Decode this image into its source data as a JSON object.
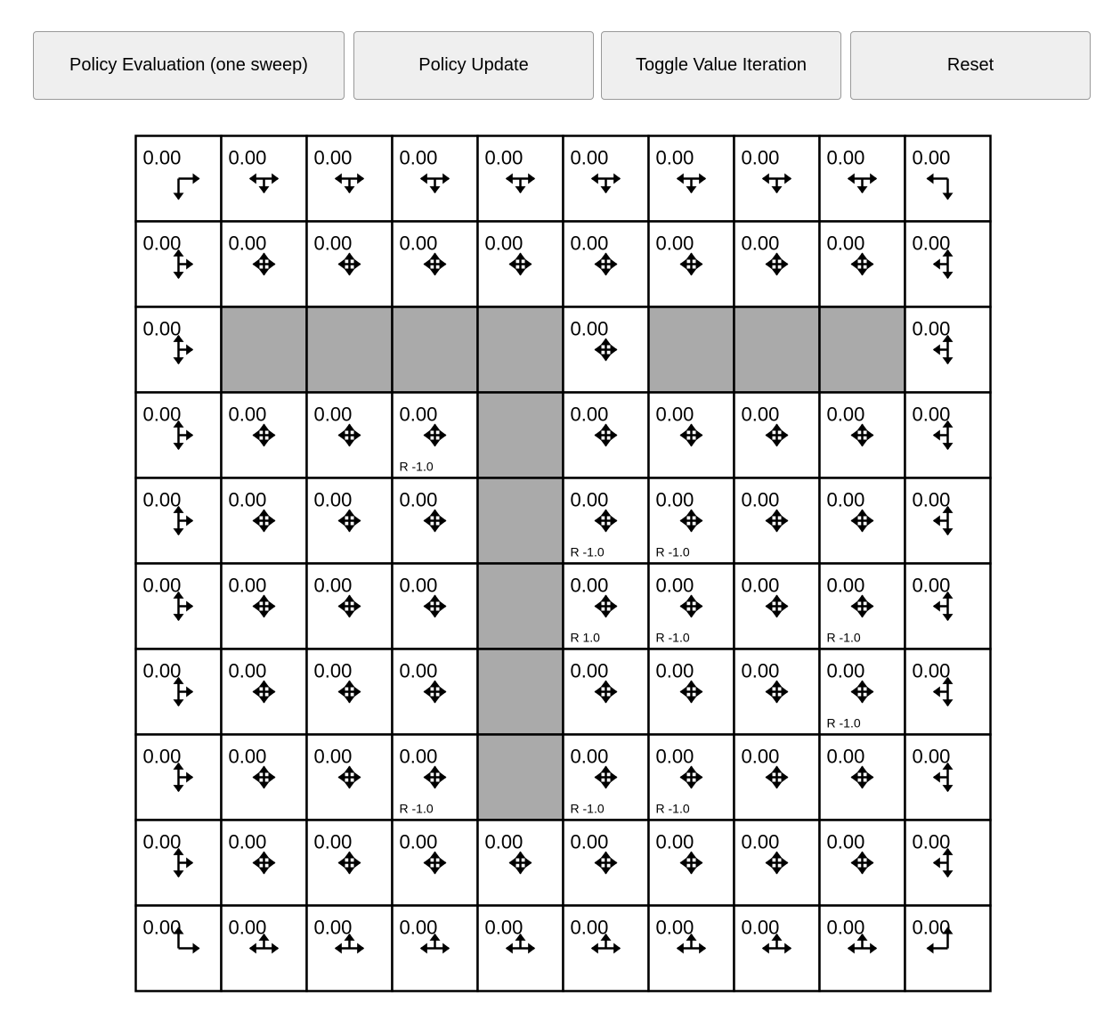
{
  "toolbar": {
    "policy_evaluation_label": "Policy Evaluation (one sweep)",
    "policy_update_label": "Policy Update",
    "toggle_value_iteration_label": "Toggle Value Iteration",
    "reset_label": "Reset"
  },
  "grid": {
    "rows": 10,
    "cols": 10,
    "wall_color": "#aaaaaa",
    "policy": "uniform over valid actions (left, up, right, down)",
    "values": [
      [
        "0.00",
        "0.00",
        "0.00",
        "0.00",
        "0.00",
        "0.00",
        "0.00",
        "0.00",
        "0.00",
        "0.00"
      ],
      [
        "0.00",
        "0.00",
        "0.00",
        "0.00",
        "0.00",
        "0.00",
        "0.00",
        "0.00",
        "0.00",
        "0.00"
      ],
      [
        "0.00",
        null,
        null,
        null,
        null,
        "0.00",
        null,
        null,
        null,
        "0.00"
      ],
      [
        "0.00",
        "0.00",
        "0.00",
        "0.00",
        null,
        "0.00",
        "0.00",
        "0.00",
        "0.00",
        "0.00"
      ],
      [
        "0.00",
        "0.00",
        "0.00",
        "0.00",
        null,
        "0.00",
        "0.00",
        "0.00",
        "0.00",
        "0.00"
      ],
      [
        "0.00",
        "0.00",
        "0.00",
        "0.00",
        null,
        "0.00",
        "0.00",
        "0.00",
        "0.00",
        "0.00"
      ],
      [
        "0.00",
        "0.00",
        "0.00",
        "0.00",
        null,
        "0.00",
        "0.00",
        "0.00",
        "0.00",
        "0.00"
      ],
      [
        "0.00",
        "0.00",
        "0.00",
        "0.00",
        null,
        "0.00",
        "0.00",
        "0.00",
        "0.00",
        "0.00"
      ],
      [
        "0.00",
        "0.00",
        "0.00",
        "0.00",
        "0.00",
        "0.00",
        "0.00",
        "0.00",
        "0.00",
        "0.00"
      ],
      [
        "0.00",
        "0.00",
        "0.00",
        "0.00",
        "0.00",
        "0.00",
        "0.00",
        "0.00",
        "0.00",
        "0.00"
      ]
    ],
    "rewards": [
      {
        "row": 3,
        "col": 3,
        "label": "R -1.0"
      },
      {
        "row": 4,
        "col": 5,
        "label": "R -1.0"
      },
      {
        "row": 4,
        "col": 6,
        "label": "R -1.0"
      },
      {
        "row": 5,
        "col": 5,
        "label": "R 1.0"
      },
      {
        "row": 5,
        "col": 6,
        "label": "R -1.0"
      },
      {
        "row": 5,
        "col": 8,
        "label": "R -1.0"
      },
      {
        "row": 6,
        "col": 8,
        "label": "R -1.0"
      },
      {
        "row": 7,
        "col": 3,
        "label": "R -1.0"
      },
      {
        "row": 7,
        "col": 5,
        "label": "R -1.0"
      },
      {
        "row": 7,
        "col": 6,
        "label": "R -1.0"
      }
    ]
  }
}
